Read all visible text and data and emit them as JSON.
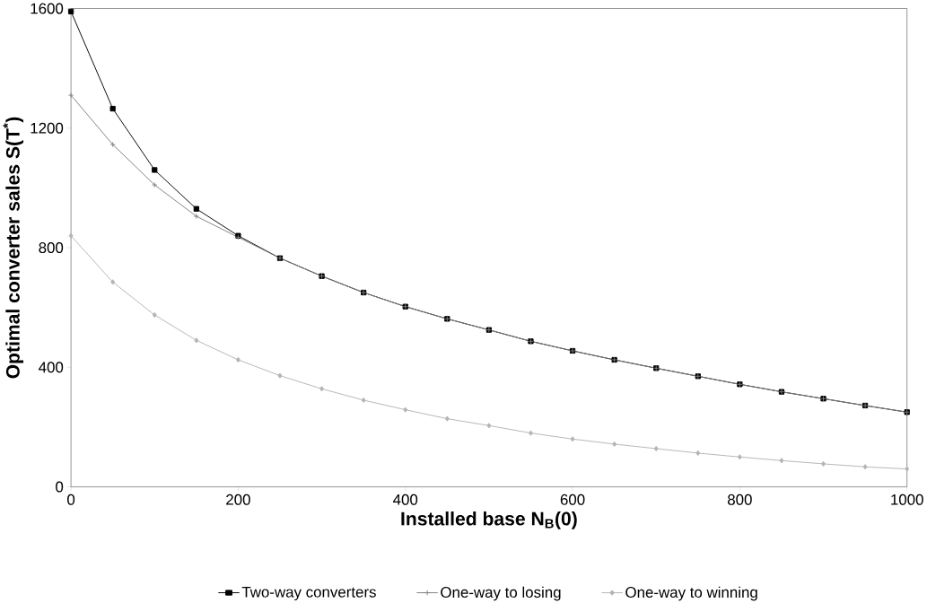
{
  "chart_data": {
    "type": "line",
    "xlabel": "Installed base N$_{B}$(0)",
    "ylabel": "Optimal converter sales S(T$^{*}$)",
    "x": [
      0,
      50,
      100,
      150,
      200,
      250,
      300,
      350,
      400,
      450,
      500,
      550,
      600,
      650,
      700,
      750,
      800,
      850,
      900,
      950,
      1000
    ],
    "series": [
      {
        "name": "Two-way converters",
        "color": "#000000",
        "marker": "square",
        "values": [
          1590,
          1265,
          1060,
          930,
          840,
          765,
          705,
          650,
          603,
          562,
          525,
          487,
          455,
          425,
          397,
          370,
          343,
          318,
          295,
          272,
          250
        ]
      },
      {
        "name": "One-way to losing",
        "color": "#808080",
        "marker": "cross",
        "values": [
          1310,
          1145,
          1010,
          905,
          835,
          765,
          705,
          650,
          603,
          562,
          525,
          487,
          455,
          425,
          397,
          370,
          343,
          318,
          295,
          272,
          250
        ]
      },
      {
        "name": "One-way to winning",
        "color": "#b4b4b4",
        "marker": "diamond",
        "values": [
          840,
          685,
          575,
          490,
          425,
          372,
          328,
          290,
          258,
          228,
          205,
          180,
          160,
          143,
          128,
          113,
          100,
          88,
          77,
          67,
          60
        ]
      }
    ],
    "xlim": [
      0,
      1000
    ],
    "ylim": [
      0,
      1600
    ],
    "xticks": [
      0,
      200,
      400,
      600,
      800,
      1000
    ],
    "yticks": [
      0,
      400,
      800,
      1200,
      1600
    ],
    "grid": false,
    "legend": "bottom",
    "line_style": "solid"
  }
}
